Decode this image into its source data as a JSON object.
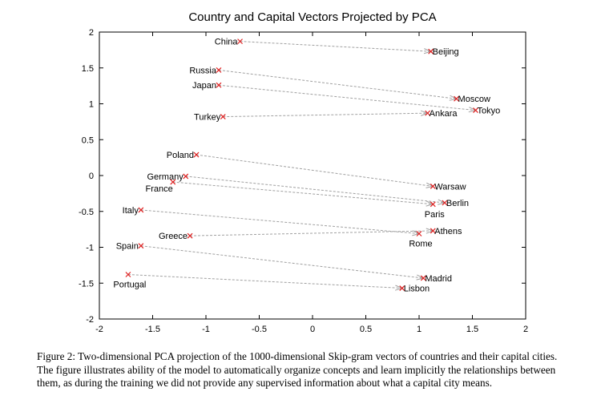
{
  "chart_data": {
    "type": "scatter",
    "title": "Country and Capital Vectors Projected by PCA",
    "xlabel": "",
    "ylabel": "",
    "xlim": [
      -2,
      2
    ],
    "ylim": [
      -2,
      2
    ],
    "xticks": [
      "-2",
      "-1.5",
      "-1",
      "-0.5",
      "0",
      "0.5",
      "1",
      "1.5",
      "2"
    ],
    "yticks": [
      "2",
      "1.5",
      "1",
      "0.5",
      "0",
      "-0.5",
      "-1",
      "-1.5",
      "-2"
    ],
    "grid": false,
    "legend": "none",
    "marker_color": "#e02020",
    "arrow_color": "#a0a0a0",
    "points": [
      {
        "label": "China",
        "x": -0.68,
        "y": 1.87,
        "label_side": "left"
      },
      {
        "label": "Beijing",
        "x": 1.11,
        "y": 1.73,
        "label_side": "right"
      },
      {
        "label": "Russia",
        "x": -0.88,
        "y": 1.47,
        "label_side": "left"
      },
      {
        "label": "Moscow",
        "x": 1.35,
        "y": 1.07,
        "label_side": "right"
      },
      {
        "label": "Japan",
        "x": -0.88,
        "y": 1.26,
        "label_side": "left"
      },
      {
        "label": "Tokyo",
        "x": 1.53,
        "y": 0.91,
        "label_side": "right"
      },
      {
        "label": "Turkey",
        "x": -0.84,
        "y": 0.82,
        "label_side": "left"
      },
      {
        "label": "Ankara",
        "x": 1.08,
        "y": 0.87,
        "label_side": "right"
      },
      {
        "label": "Poland",
        "x": -1.09,
        "y": 0.29,
        "label_side": "left"
      },
      {
        "label": "Warsaw",
        "x": 1.13,
        "y": -0.15,
        "label_side": "right"
      },
      {
        "label": "Germany",
        "x": -1.19,
        "y": -0.01,
        "label_side": "left"
      },
      {
        "label": "Berlin",
        "x": 1.24,
        "y": -0.38,
        "label_side": "right"
      },
      {
        "label": "France",
        "x": -1.31,
        "y": -0.09,
        "label_side": "left-below"
      },
      {
        "label": "Paris",
        "x": 1.13,
        "y": -0.4,
        "label_side": "below"
      },
      {
        "label": "Italy",
        "x": -1.61,
        "y": -0.48,
        "label_side": "left"
      },
      {
        "label": "Rome",
        "x": 1.0,
        "y": -0.81,
        "label_side": "below"
      },
      {
        "label": "Greece",
        "x": -1.15,
        "y": -0.84,
        "label_side": "left"
      },
      {
        "label": "Athens",
        "x": 1.13,
        "y": -0.77,
        "label_side": "right"
      },
      {
        "label": "Spain",
        "x": -1.61,
        "y": -0.98,
        "label_side": "left"
      },
      {
        "label": "Madrid",
        "x": 1.04,
        "y": -1.43,
        "label_side": "right"
      },
      {
        "label": "Portugal",
        "x": -1.73,
        "y": -1.38,
        "label_side": "below"
      },
      {
        "label": "Lisbon",
        "x": 0.84,
        "y": -1.57,
        "label_side": "right"
      }
    ],
    "arrows": [
      {
        "from": "China",
        "to": "Beijing"
      },
      {
        "from": "Russia",
        "to": "Moscow"
      },
      {
        "from": "Japan",
        "to": "Tokyo"
      },
      {
        "from": "Turkey",
        "to": "Ankara"
      },
      {
        "from": "Poland",
        "to": "Warsaw"
      },
      {
        "from": "Germany",
        "to": "Berlin"
      },
      {
        "from": "France",
        "to": "Paris"
      },
      {
        "from": "Italy",
        "to": "Rome"
      },
      {
        "from": "Greece",
        "to": "Athens"
      },
      {
        "from": "Spain",
        "to": "Madrid"
      },
      {
        "from": "Portugal",
        "to": "Lisbon"
      }
    ]
  },
  "caption": "Figure 2: Two-dimensional PCA projection of the 1000-dimensional Skip-gram vectors of countries and their capital cities. The figure illustrates ability of the model to automatically organize concepts and learn implicitly the relationships between them, as during the training we did not provide any supervised information about what a capital city means."
}
